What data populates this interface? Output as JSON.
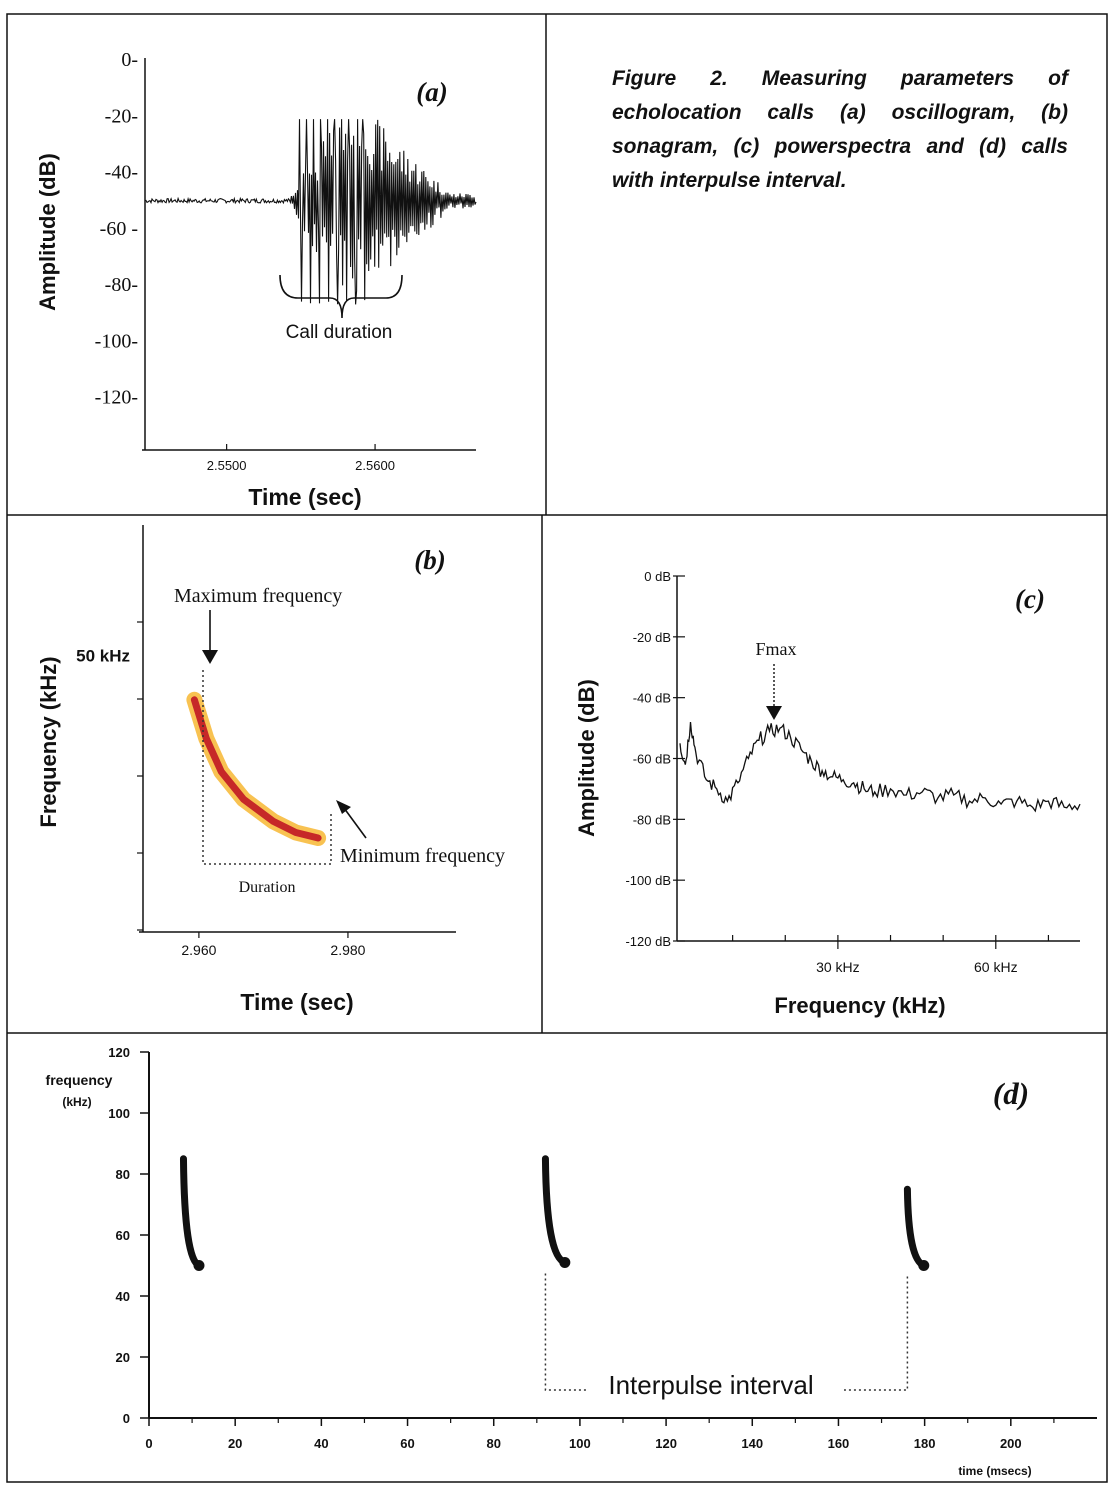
{
  "figure": {
    "caption": "Figure 2. Measuring parameters of echolocation calls (a) oscillogram, (b) sonagram, (c) powerspectra and (d) calls with interpulse interval."
  },
  "colors": {
    "ink": "#111111",
    "call_core": "#c62828",
    "call_halo": "#f7b733"
  },
  "panel_a": {
    "label": "(a)",
    "annotation": "Call duration",
    "chart_data": {
      "type": "line",
      "title": "",
      "xlabel": "Time (sec)",
      "ylabel": "Amplitude (dB)",
      "yticks": [
        "0-",
        "-20-",
        "-40-",
        "-60 -",
        "-80-",
        "-100-",
        "-120-"
      ],
      "ytick_values": [
        0,
        -20,
        -40,
        -60,
        -80,
        -100,
        -120
      ],
      "xticks": [
        "2.5500",
        "2.5600"
      ],
      "xtick_values": [
        2.55,
        2.56
      ],
      "ylim": [
        -140,
        0
      ],
      "xlim": [
        2.5445,
        2.5668
      ],
      "baseline": -50,
      "call_start": 2.5542,
      "call_end": 2.5633,
      "min_level": -85,
      "max_level": -21
    }
  },
  "panel_b": {
    "label": "(b)",
    "annotations": {
      "max_freq": "Maximum frequency",
      "min_freq": "Minimum frequency",
      "duration": "Duration"
    },
    "chart_data": {
      "type": "line",
      "title": "",
      "xlabel": "Time (sec)",
      "ylabel": "Frequency (kHz)",
      "xticks": [
        "2.960",
        "2.980"
      ],
      "xtick_values": [
        2.96,
        2.98
      ],
      "yticks": [
        "50 kHz"
      ],
      "ytick_values": [
        50
      ],
      "xlim": [
        2.9525,
        2.9945
      ],
      "ylim": [
        0,
        70
      ],
      "call_x": [
        2.9594,
        2.961,
        2.963,
        2.966,
        2.97,
        2.973,
        2.976
      ],
      "call_y": [
        42,
        35,
        29,
        24,
        20,
        18,
        17
      ]
    }
  },
  "panel_c": {
    "label": "(c)",
    "peak_label": "Fmax",
    "chart_data": {
      "type": "line",
      "title": "",
      "xlabel": "Frequency (kHz)",
      "ylabel": "Amplitude (dB)",
      "yticks": [
        "0 dB",
        "-20 dB",
        "-40 dB",
        "-60 dB",
        "-80 dB",
        "-100 dB",
        "-120 dB"
      ],
      "ytick_values": [
        0,
        -20,
        -40,
        -60,
        -80,
        -100,
        -120
      ],
      "xticks": [
        "30 kHz",
        "60 kHz"
      ],
      "xtick_values": [
        30,
        60
      ],
      "xlim": [
        0,
        76
      ],
      "ylim": [
        -120,
        0
      ],
      "x": [
        0,
        1,
        2,
        3,
        5,
        7,
        9,
        11,
        13,
        15,
        17,
        19,
        21,
        23,
        25,
        27,
        29,
        31,
        33,
        35,
        37,
        40,
        43,
        46,
        49,
        52,
        55,
        58,
        61,
        64,
        67,
        70,
        73,
        76
      ],
      "y": [
        -55,
        -62,
        -48,
        -58,
        -67,
        -70,
        -74,
        -68,
        -60,
        -54,
        -51,
        -50,
        -53,
        -57,
        -61,
        -64,
        -66,
        -67,
        -68,
        -70,
        -71,
        -70,
        -72,
        -71,
        -73,
        -72,
        -74,
        -73,
        -75,
        -74,
        -76,
        -74,
        -76,
        -75
      ]
    }
  },
  "panel_d": {
    "label": "(d)",
    "annotation": "Interpulse interval",
    "ylabel_line1": "frequency",
    "ylabel_line2": "(kHz)",
    "xlabel": "time (msecs)",
    "chart_data": {
      "type": "line",
      "title": "",
      "xlabel": "time (msecs)",
      "ylabel": "frequency (kHz)",
      "yticks": [
        "0",
        "20",
        "40",
        "60",
        "80",
        "100",
        "120"
      ],
      "ytick_values": [
        0,
        20,
        40,
        60,
        80,
        100,
        120
      ],
      "xticks": [
        "0",
        "20",
        "40",
        "60",
        "80",
        "100",
        "120",
        "140",
        "160",
        "180",
        "200"
      ],
      "xtick_values": [
        0,
        20,
        40,
        60,
        80,
        100,
        120,
        140,
        160,
        180,
        200
      ],
      "xlim": [
        0,
        220
      ],
      "ylim": [
        0,
        120
      ],
      "pulses": [
        {
          "start_time": 8.0,
          "end_time": 11.6,
          "start_freq": 85,
          "end_freq": 50
        },
        {
          "start_time": 92.0,
          "end_time": 96.5,
          "start_freq": 85,
          "end_freq": 51
        },
        {
          "start_time": 176.0,
          "end_time": 179.8,
          "start_freq": 75,
          "end_freq": 50
        }
      ],
      "interval_start": 92,
      "interval_end": 176
    }
  }
}
